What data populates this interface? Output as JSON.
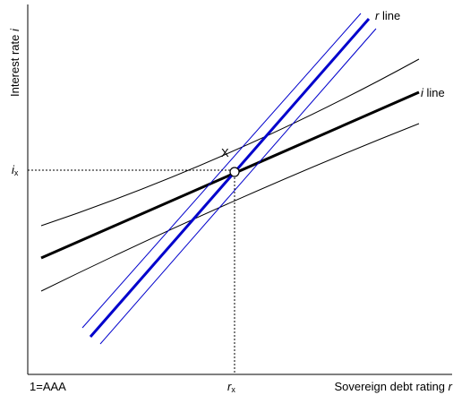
{
  "diagram": {
    "y_axis_label": "Interest rate i",
    "x_axis_label": "Sovereign debt rating r",
    "x_origin_label": "1=AAA",
    "point_label": "X",
    "i_x": {
      "main": "i",
      "sub": "x"
    },
    "r_x": {
      "main": "r",
      "sub": "x"
    },
    "r_line_label": {
      "italic": "r",
      "rest": " line"
    },
    "i_line_label": {
      "italic": "i",
      "rest": " line"
    },
    "colors": {
      "r_line": "#0000cc",
      "i_line": "#000000",
      "axes": "#000000",
      "point_fill": "#ffffff"
    }
  }
}
